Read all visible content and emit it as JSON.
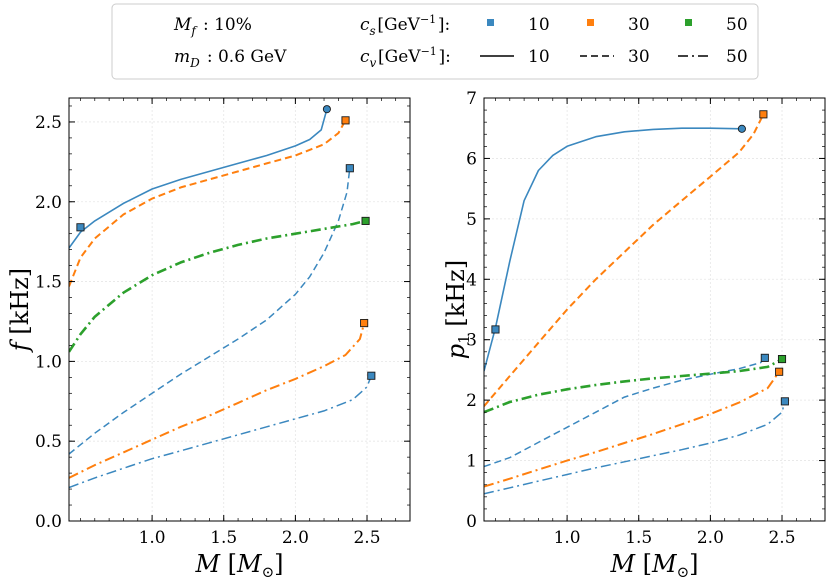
{
  "legend": {
    "mf_label": "M_f : 10%",
    "md_label": "m_D : 0.6 GeV",
    "cs_label": "c_s[GeV^-1]:",
    "cv_label": "c_v[GeV^-1]:",
    "cs_entries": [
      {
        "value": "10",
        "color": "#3b88bf"
      },
      {
        "value": "30",
        "color": "#ff7f0e"
      },
      {
        "value": "50",
        "color": "#2ca02c"
      }
    ],
    "cv_entries": [
      {
        "value": "10",
        "dash": "solid"
      },
      {
        "value": "30",
        "dash": "dashed"
      },
      {
        "value": "50",
        "dash": "dashdot"
      }
    ]
  },
  "chart_data": [
    {
      "type": "line",
      "xlabel": "M [M_sun]",
      "ylabel": "f [kHz]",
      "xlim": [
        0.42,
        2.8
      ],
      "ylim": [
        0.0,
        2.65
      ],
      "xticks": [
        1.0,
        1.5,
        2.0,
        2.5
      ],
      "yticks": [
        0.0,
        0.5,
        1.0,
        1.5,
        2.0,
        2.5
      ],
      "series": [
        {
          "name": "cs=10, cv=10",
          "color": "#3b88bf",
          "dash": "solid",
          "width": 1.6,
          "x": [
            0.42,
            0.5,
            0.6,
            0.8,
            1.0,
            1.2,
            1.4,
            1.6,
            1.8,
            2.0,
            2.1,
            2.18,
            2.22
          ],
          "y": [
            1.71,
            1.81,
            1.88,
            1.99,
            2.08,
            2.14,
            2.19,
            2.24,
            2.29,
            2.35,
            2.39,
            2.45,
            2.58
          ],
          "markers": [
            {
              "x": 0.5,
              "y": 1.84,
              "shape": "square"
            },
            {
              "x": 2.22,
              "y": 2.58,
              "shape": "circle"
            }
          ]
        },
        {
          "name": "cs=30, cv=30",
          "color": "#ff7f0e",
          "dash": "dashed",
          "width": 2.0,
          "x": [
            0.42,
            0.5,
            0.6,
            0.8,
            1.0,
            1.2,
            1.4,
            1.6,
            1.8,
            2.0,
            2.2,
            2.3,
            2.35
          ],
          "y": [
            1.47,
            1.65,
            1.77,
            1.92,
            2.02,
            2.09,
            2.14,
            2.19,
            2.24,
            2.29,
            2.36,
            2.43,
            2.51
          ],
          "markers": [
            {
              "x": 2.35,
              "y": 2.51,
              "shape": "square"
            }
          ]
        },
        {
          "name": "cs=10, cv=30",
          "color": "#3b88bf",
          "dash": "dashed",
          "width": 1.5,
          "x": [
            0.42,
            0.6,
            0.8,
            1.0,
            1.2,
            1.4,
            1.6,
            1.8,
            2.0,
            2.1,
            2.2,
            2.3,
            2.36,
            2.38
          ],
          "y": [
            0.42,
            0.55,
            0.68,
            0.8,
            0.92,
            1.03,
            1.14,
            1.26,
            1.42,
            1.53,
            1.68,
            1.88,
            2.06,
            2.21
          ],
          "markers": [
            {
              "x": 2.38,
              "y": 2.21,
              "shape": "square"
            }
          ]
        },
        {
          "name": "cs=50, cv=50",
          "color": "#2ca02c",
          "dash": "dashdot",
          "width": 2.6,
          "x": [
            0.42,
            0.5,
            0.6,
            0.8,
            1.0,
            1.2,
            1.4,
            1.6,
            1.8,
            2.0,
            2.2,
            2.4,
            2.49
          ],
          "y": [
            1.06,
            1.17,
            1.28,
            1.43,
            1.54,
            1.62,
            1.68,
            1.73,
            1.77,
            1.8,
            1.83,
            1.86,
            1.88
          ],
          "markers": [
            {
              "x": 2.49,
              "y": 1.88,
              "shape": "square"
            }
          ]
        },
        {
          "name": "cs=30, cv=50",
          "color": "#ff7f0e",
          "dash": "dashdot",
          "width": 2.0,
          "x": [
            0.42,
            0.6,
            0.8,
            1.0,
            1.2,
            1.4,
            1.6,
            1.8,
            2.0,
            2.2,
            2.35,
            2.45,
            2.48
          ],
          "y": [
            0.27,
            0.35,
            0.43,
            0.51,
            0.59,
            0.66,
            0.74,
            0.82,
            0.89,
            0.97,
            1.04,
            1.14,
            1.24
          ],
          "markers": [
            {
              "x": 2.48,
              "y": 1.24,
              "shape": "square"
            }
          ]
        },
        {
          "name": "cs=10, cv=50",
          "color": "#3b88bf",
          "dash": "dashdot",
          "width": 1.5,
          "x": [
            0.42,
            0.6,
            0.8,
            1.0,
            1.2,
            1.4,
            1.6,
            1.8,
            2.0,
            2.2,
            2.4,
            2.5,
            2.53
          ],
          "y": [
            0.21,
            0.27,
            0.33,
            0.39,
            0.44,
            0.49,
            0.54,
            0.59,
            0.64,
            0.69,
            0.76,
            0.84,
            0.91
          ],
          "markers": [
            {
              "x": 2.53,
              "y": 0.91,
              "shape": "square"
            }
          ]
        }
      ]
    },
    {
      "type": "line",
      "xlabel": "M [M_sun]",
      "ylabel": "p_1 [kHz]",
      "xlim": [
        0.42,
        2.8
      ],
      "ylim": [
        0.0,
        7.0
      ],
      "xticks": [
        1.0,
        1.5,
        2.0,
        2.5
      ],
      "yticks": [
        0,
        1,
        2,
        3,
        4,
        5,
        6,
        7
      ],
      "series": [
        {
          "name": "cs=10, cv=10",
          "color": "#3b88bf",
          "dash": "solid",
          "width": 1.6,
          "x": [
            0.42,
            0.5,
            0.6,
            0.7,
            0.8,
            0.9,
            1.0,
            1.2,
            1.4,
            1.6,
            1.8,
            2.0,
            2.22
          ],
          "y": [
            2.48,
            3.2,
            4.3,
            5.3,
            5.8,
            6.05,
            6.2,
            6.36,
            6.44,
            6.48,
            6.5,
            6.5,
            6.49
          ],
          "markers": [
            {
              "x": 0.5,
              "y": 3.17,
              "shape": "square"
            },
            {
              "x": 2.22,
              "y": 6.49,
              "shape": "circle"
            }
          ]
        },
        {
          "name": "cs=30, cv=30",
          "color": "#ff7f0e",
          "dash": "dashed",
          "width": 2.0,
          "x": [
            0.42,
            0.6,
            0.8,
            1.0,
            1.2,
            1.4,
            1.6,
            1.8,
            2.0,
            2.2,
            2.3,
            2.37
          ],
          "y": [
            1.9,
            2.4,
            2.95,
            3.5,
            4.0,
            4.45,
            4.9,
            5.3,
            5.7,
            6.1,
            6.4,
            6.73
          ],
          "markers": [
            {
              "x": 2.37,
              "y": 6.73,
              "shape": "square"
            }
          ]
        },
        {
          "name": "cs=10, cv=30",
          "color": "#3b88bf",
          "dash": "dashed",
          "width": 1.5,
          "x": [
            0.42,
            0.6,
            0.8,
            1.0,
            1.2,
            1.4,
            1.6,
            1.8,
            2.0,
            2.2,
            2.35,
            2.38
          ],
          "y": [
            0.9,
            1.05,
            1.3,
            1.55,
            1.8,
            2.05,
            2.2,
            2.33,
            2.43,
            2.52,
            2.62,
            2.7
          ],
          "markers": [
            {
              "x": 2.38,
              "y": 2.7,
              "shape": "square"
            }
          ]
        },
        {
          "name": "cs=50, cv=50",
          "color": "#2ca02c",
          "dash": "dashdot",
          "width": 2.6,
          "x": [
            0.42,
            0.6,
            0.8,
            1.0,
            1.2,
            1.4,
            1.6,
            1.8,
            2.0,
            2.2,
            2.4,
            2.5
          ],
          "y": [
            1.8,
            1.97,
            2.09,
            2.18,
            2.25,
            2.31,
            2.36,
            2.4,
            2.44,
            2.48,
            2.55,
            2.68
          ],
          "markers": [
            {
              "x": 2.5,
              "y": 2.68,
              "shape": "square"
            }
          ]
        },
        {
          "name": "cs=30, cv=50",
          "color": "#ff7f0e",
          "dash": "dashdot",
          "width": 2.0,
          "x": [
            0.42,
            0.6,
            0.8,
            1.0,
            1.2,
            1.4,
            1.6,
            1.8,
            2.0,
            2.2,
            2.4,
            2.48
          ],
          "y": [
            0.57,
            0.7,
            0.85,
            1.0,
            1.14,
            1.29,
            1.44,
            1.6,
            1.77,
            1.96,
            2.2,
            2.47
          ],
          "markers": [
            {
              "x": 2.48,
              "y": 2.47,
              "shape": "square"
            }
          ]
        },
        {
          "name": "cs=10, cv=50",
          "color": "#3b88bf",
          "dash": "dashdot",
          "width": 1.5,
          "x": [
            0.42,
            0.6,
            0.8,
            1.0,
            1.2,
            1.4,
            1.6,
            1.8,
            2.0,
            2.2,
            2.4,
            2.5,
            2.52
          ],
          "y": [
            0.45,
            0.55,
            0.66,
            0.77,
            0.88,
            0.98,
            1.08,
            1.18,
            1.29,
            1.42,
            1.6,
            1.8,
            1.98
          ],
          "markers": [
            {
              "x": 2.52,
              "y": 1.98,
              "shape": "square"
            }
          ]
        }
      ]
    }
  ]
}
